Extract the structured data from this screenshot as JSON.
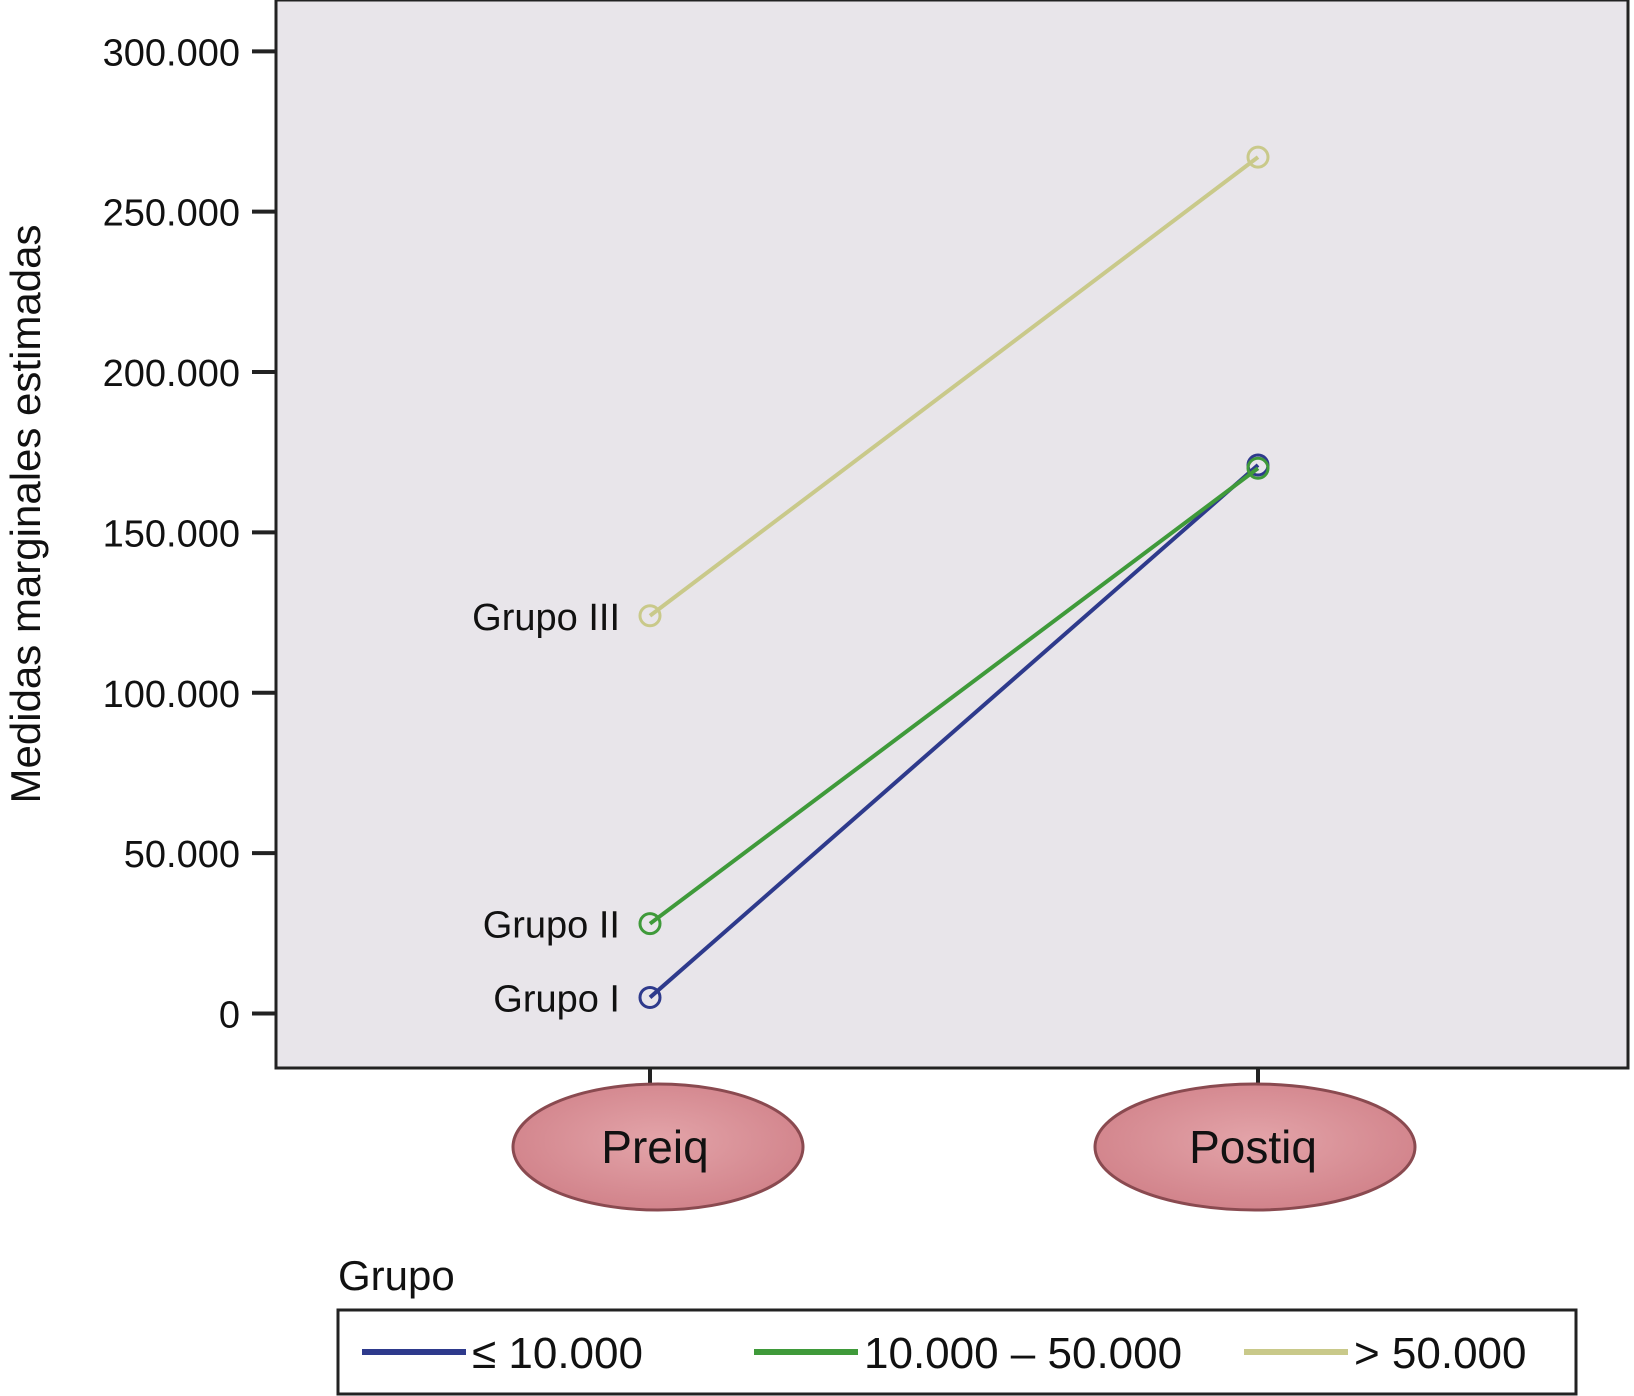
{
  "chart_data": {
    "type": "line",
    "ylabel": "Medidas marginales estimadas",
    "ylim": [
      -17000,
      316000
    ],
    "yticks": [
      0,
      50000,
      100000,
      150000,
      200000,
      250000,
      300000
    ],
    "ytick_labels": [
      "0",
      "50.000",
      "100.000",
      "150.000",
      "200.000",
      "250.000",
      "300.000"
    ],
    "categories": [
      "Preiq",
      "Postiq"
    ],
    "series": [
      {
        "name": "≤ 10.000",
        "annotation": "Grupo I",
        "color": "#2e3a8c",
        "values": [
          5000,
          171000
        ]
      },
      {
        "name": "10.000 – 50.000",
        "annotation": "Grupo II",
        "color": "#3f9a3a",
        "values": [
          28000,
          170000
        ]
      },
      {
        "name": "> 50.000",
        "annotation": "Grupo III",
        "color": "#c9c98a",
        "values": [
          124000,
          267000
        ]
      }
    ],
    "legend": {
      "title": "Grupo",
      "position": "bottom"
    },
    "grid": false
  },
  "colors": {
    "plot_background": "#e8e5ea",
    "category_ellipse_fill": "#d88c92",
    "category_ellipse_stroke": "#8a4a50"
  }
}
